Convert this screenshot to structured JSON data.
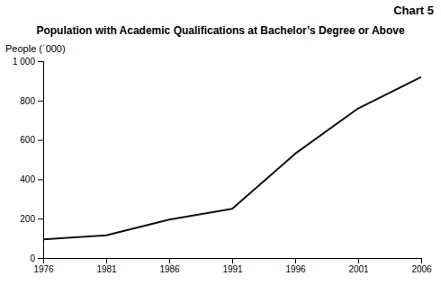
{
  "chart_data": {
    "type": "line",
    "title": "Population with Academic Qualifications at Bachelor’s Degree or Above",
    "annotations": [
      "Chart 5"
    ],
    "ylabel": "People (ʿ000)",
    "x": [
      1976,
      1981,
      1986,
      1991,
      1996,
      2001,
      2006
    ],
    "values": [
      95,
      115,
      195,
      250,
      530,
      760,
      920
    ],
    "color": "#111111",
    "xlim": [
      1976,
      2006
    ],
    "xticks": [
      1976,
      1981,
      1986,
      1991,
      1996,
      2001,
      2006
    ],
    "ylim": [
      0,
      1000
    ],
    "yticks": [
      0,
      200,
      400,
      600,
      800,
      {
        "value": 1000,
        "label": "1 000"
      }
    ],
    "grid": false
  }
}
